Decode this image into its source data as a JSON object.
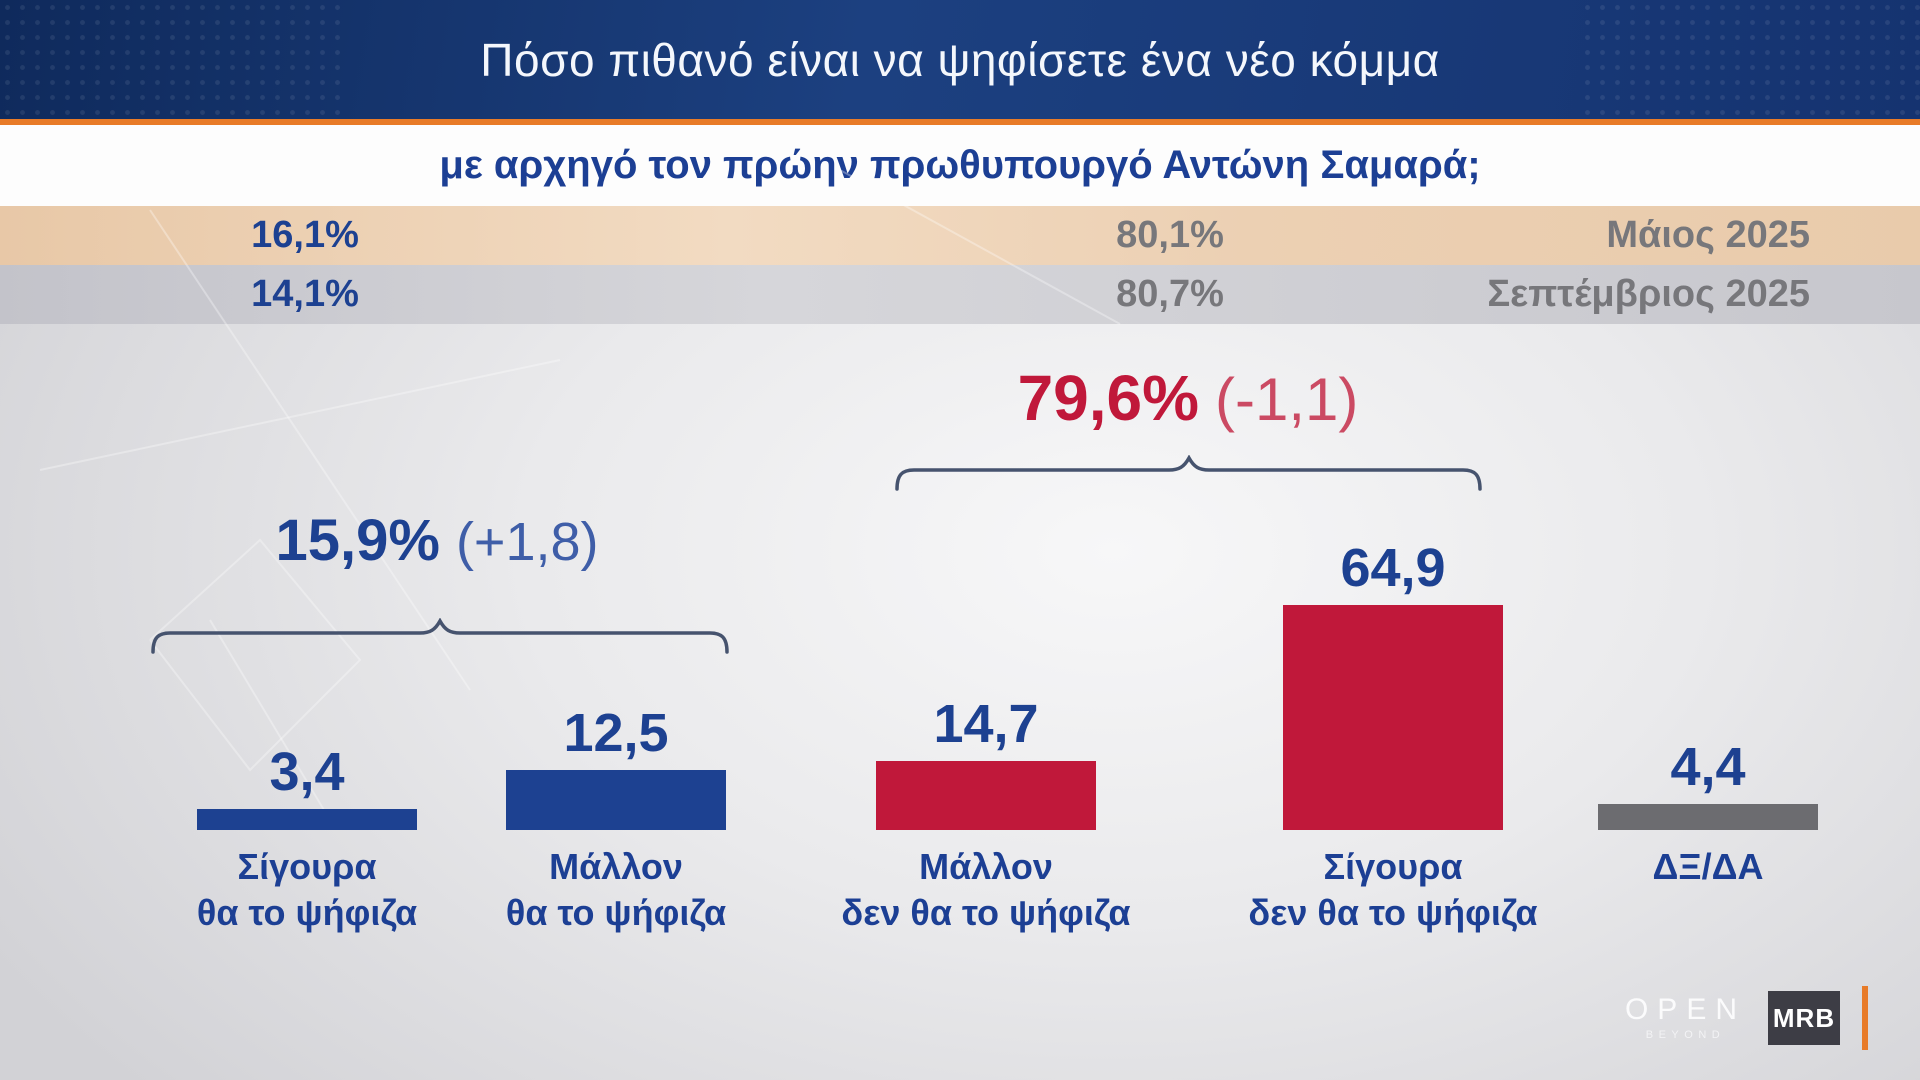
{
  "header": {
    "title": "Πόσο πιθανό είναι να ψηφίσετε ένα νέο κόμμα",
    "subtitle": "με αρχηγό τον πρώην πρωθυπουργό Αντώνη Σαμαρά;"
  },
  "history_rows": [
    {
      "likely": "16,1%",
      "unlikely": "80,1%",
      "period": "Μάιος 2025"
    },
    {
      "likely": "14,1%",
      "unlikely": "80,7%",
      "period": "Σεπτέμβριος 2025"
    }
  ],
  "chart_data": {
    "type": "bar",
    "title": "Πόσο πιθανό είναι να ψηφίσετε ένα νέο κόμμα με αρχηγό τον πρώην πρωθυπουργό Αντώνη Σαμαρά;",
    "unit": "%",
    "categories": [
      "Σίγουρα\nθα το ψήφιζα",
      "Μάλλον\nθα το ψήφιζα",
      "Μάλλον\nδεν θα το ψήφιζα",
      "Σίγουρα\nδεν θα το ψήφιζα",
      "ΔΞ/ΔΑ"
    ],
    "values": [
      3.4,
      12.5,
      14.7,
      64.9,
      4.4
    ],
    "value_labels": [
      "3,4",
      "12,5",
      "14,7",
      "64,9",
      "4,4"
    ],
    "bar_colors": [
      "#1d4191",
      "#1d4191",
      "#c0183a",
      "#c0183a",
      "#6c6c70"
    ],
    "ylim": [
      0,
      70
    ],
    "grid": "off",
    "legend": "none",
    "groups": [
      {
        "label": "15,9%",
        "change": "(+1,8)",
        "color": "#1d4191",
        "bars": [
          0,
          1
        ]
      },
      {
        "label": "79,6%",
        "change": "(-1,1)",
        "color": "#c0183a",
        "bars": [
          2,
          3
        ]
      }
    ]
  },
  "footer": {
    "open": "OPEN",
    "beyond": "BEYOND",
    "mrb": "MRB"
  },
  "colors": {
    "navy": "#1d4191",
    "crimson": "#c0183a",
    "orange": "#e87b28",
    "gray_text": "#77777b",
    "bar_gray": "#6c6c70",
    "header_navy": "#16356f",
    "row_peach": "#e9cbab",
    "row_gray": "#c8c8ce"
  }
}
